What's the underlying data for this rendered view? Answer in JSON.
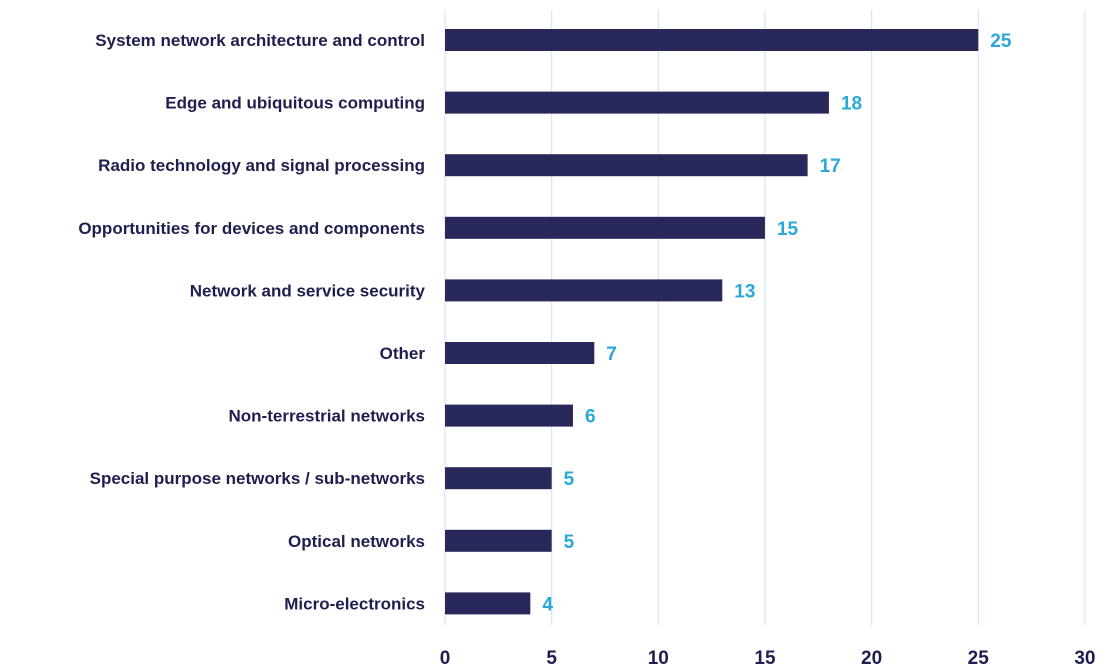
{
  "colors": {
    "bar": "#28295a",
    "value_label": "#2aa8d8",
    "category_label": "#1e1f4e",
    "gridline": "#cfe9f2"
  },
  "chart_data": {
    "type": "bar",
    "orientation": "horizontal",
    "categories": [
      "System network architecture and control",
      "Edge and ubiquitous computing",
      "Radio technology and signal processing",
      "Opportunities for devices and components",
      "Network and service security",
      "Other",
      "Non-terrestrial networks",
      "Special purpose networks / sub-networks",
      "Optical networks",
      "Micro-electronics"
    ],
    "values": [
      25,
      18,
      17,
      15,
      13,
      7,
      6,
      5,
      5,
      4
    ],
    "value_labels": [
      "25",
      "18",
      "17",
      "15",
      "13",
      "7",
      "6",
      "5",
      "5",
      "4"
    ],
    "xlim": [
      0,
      30
    ],
    "xticks": [
      "0",
      "5",
      "10",
      "15",
      "20",
      "25",
      "30"
    ],
    "grid": "vertical",
    "legend": "none"
  }
}
